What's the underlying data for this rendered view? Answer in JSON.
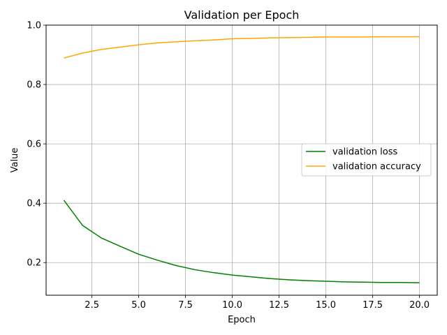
{
  "chart_data": {
    "type": "line",
    "title": "Validation per Epoch",
    "xlabel": "Epoch",
    "ylabel": "Value",
    "xlim": [
      0.05,
      20.95
    ],
    "ylim": [
      0.09,
      1.0
    ],
    "x_ticks": [
      2.5,
      5.0,
      7.5,
      10.0,
      12.5,
      15.0,
      17.5,
      20.0
    ],
    "y_ticks": [
      0.2,
      0.4,
      0.6,
      0.8,
      1.0
    ],
    "x_tick_labels": [
      "2.5",
      "5.0",
      "7.5",
      "10.0",
      "12.5",
      "15.0",
      "17.5",
      "20.0"
    ],
    "y_tick_labels": [
      "0.2",
      "0.4",
      "0.6",
      "0.8",
      "1.0"
    ],
    "grid": true,
    "legend_position": "center-right",
    "x": [
      1,
      2,
      3,
      4,
      5,
      6,
      7,
      8,
      9,
      10,
      11,
      12,
      13,
      14,
      15,
      16,
      17,
      18,
      19,
      20
    ],
    "series": [
      {
        "name": "validation loss",
        "color": "#008000",
        "values": [
          0.41,
          0.325,
          0.283,
          0.255,
          0.228,
          0.208,
          0.19,
          0.176,
          0.166,
          0.158,
          0.152,
          0.146,
          0.142,
          0.139,
          0.137,
          0.135,
          0.134,
          0.133,
          0.133,
          0.132
        ]
      },
      {
        "name": "validation accuracy",
        "color": "#ffa500",
        "values": [
          0.889,
          0.906,
          0.918,
          0.926,
          0.934,
          0.94,
          0.944,
          0.947,
          0.95,
          0.954,
          0.955,
          0.957,
          0.958,
          0.959,
          0.96,
          0.96,
          0.96,
          0.961,
          0.961,
          0.961
        ]
      }
    ]
  }
}
